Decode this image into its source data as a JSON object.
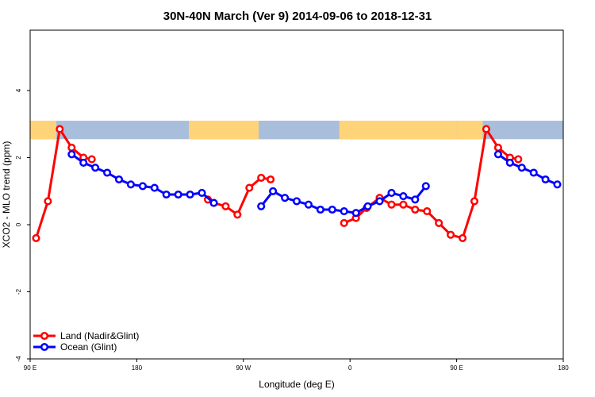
{
  "chart_data": {
    "type": "line",
    "title": "30N-40N March (Ver 9)   2014-09-06 to 2018-12-31",
    "xlabel": "Longitude (deg E)",
    "ylabel": "XCO2 - MLO trend (ppm)",
    "xlim": [
      90,
      540
    ],
    "ylim": [
      -4,
      5.8
    ],
    "x_ticks": [
      {
        "value": 90,
        "label": "90 E"
      },
      {
        "value": 180,
        "label": "180"
      },
      {
        "value": 270,
        "label": "90 W"
      },
      {
        "value": 360,
        "label": "0"
      },
      {
        "value": 450,
        "label": "90 E"
      },
      {
        "value": 540,
        "label": "180"
      }
    ],
    "y_ticks": [
      {
        "value": -4,
        "label": "-4"
      },
      {
        "value": -2,
        "label": "-2"
      },
      {
        "value": 0,
        "label": "0"
      },
      {
        "value": 2,
        "label": "2"
      },
      {
        "value": 4,
        "label": "4"
      }
    ],
    "grid": false,
    "legend_position": "bottom-left",
    "map_band": {
      "y_min": 2.55,
      "y_max": 3.1,
      "ocean_color": "#a9bedb",
      "land_color": "#ffd479"
    },
    "series": [
      {
        "name": "Land (Nadir&Glint)",
        "color": "#ff0000",
        "segments": [
          [
            [
              95,
              -0.4
            ],
            [
              105,
              0.7
            ],
            [
              115,
              2.85
            ],
            [
              125,
              2.3
            ],
            [
              135,
              2.0
            ],
            [
              142,
              1.95
            ]
          ],
          [
            [
              240,
              0.75
            ],
            [
              245,
              0.65
            ],
            [
              255,
              0.55
            ],
            [
              265,
              0.3
            ],
            [
              275,
              1.1
            ],
            [
              285,
              1.4
            ],
            [
              293,
              1.35
            ]
          ],
          [
            [
              355,
              0.05
            ],
            [
              365,
              0.2
            ],
            [
              374,
              0.5
            ],
            [
              385,
              0.8
            ],
            [
              395,
              0.6
            ],
            [
              405,
              0.6
            ],
            [
              415,
              0.45
            ],
            [
              425,
              0.4
            ],
            [
              435,
              0.05
            ],
            [
              445,
              -0.3
            ],
            [
              455,
              -0.4
            ],
            [
              465,
              0.7
            ],
            [
              475,
              2.85
            ],
            [
              485,
              2.3
            ],
            [
              495,
              2.0
            ],
            [
              502,
              1.95
            ]
          ]
        ]
      },
      {
        "name": "Ocean (Glint)",
        "color": "#0000ff",
        "segments": [
          [
            [
              125,
              2.1
            ],
            [
              135,
              1.85
            ],
            [
              145,
              1.7
            ],
            [
              155,
              1.55
            ],
            [
              165,
              1.35
            ],
            [
              175,
              1.2
            ],
            [
              185,
              1.15
            ],
            [
              195,
              1.1
            ],
            [
              205,
              0.9
            ],
            [
              215,
              0.9
            ],
            [
              225,
              0.9
            ],
            [
              235,
              0.95
            ],
            [
              245,
              0.65
            ]
          ],
          [
            [
              285,
              0.55
            ],
            [
              295,
              1.0
            ],
            [
              305,
              0.8
            ],
            [
              315,
              0.7
            ],
            [
              325,
              0.6
            ],
            [
              335,
              0.45
            ],
            [
              345,
              0.45
            ],
            [
              355,
              0.4
            ],
            [
              365,
              0.35
            ],
            [
              375,
              0.55
            ],
            [
              385,
              0.7
            ],
            [
              395,
              0.95
            ],
            [
              405,
              0.85
            ],
            [
              415,
              0.75
            ],
            [
              424,
              1.15
            ]
          ],
          [
            [
              485,
              2.1
            ],
            [
              495,
              1.85
            ],
            [
              505,
              1.7
            ],
            [
              515,
              1.55
            ],
            [
              525,
              1.35
            ],
            [
              535,
              1.2
            ]
          ]
        ]
      }
    ]
  }
}
